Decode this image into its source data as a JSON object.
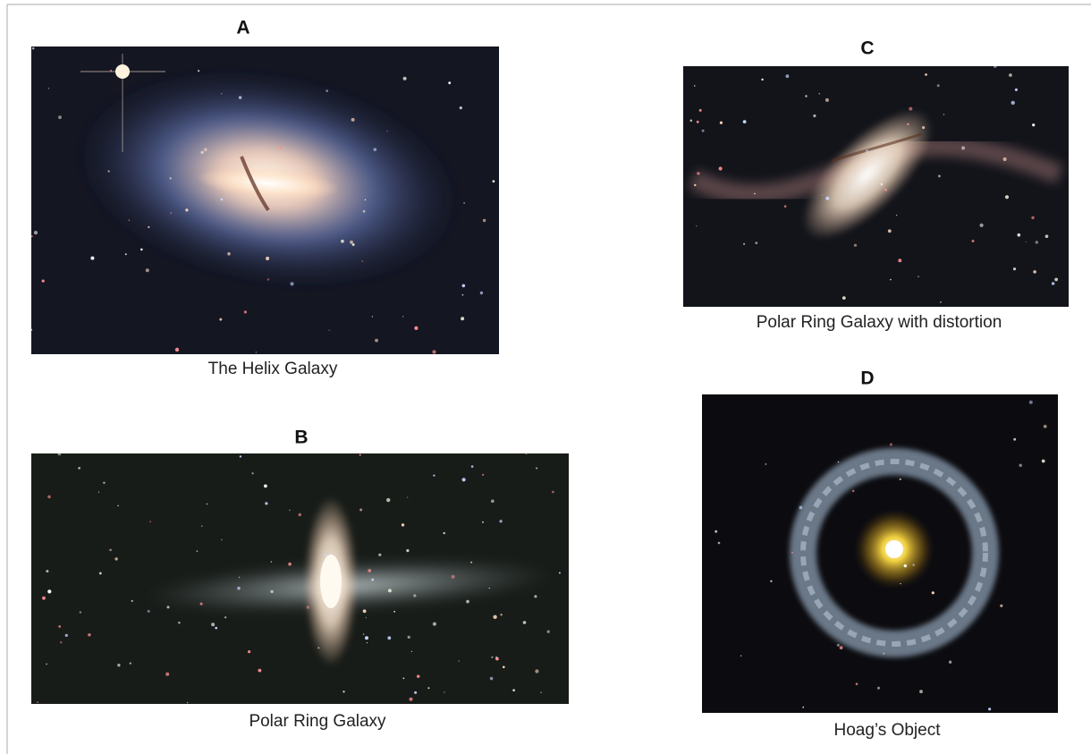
{
  "panels": [
    {
      "label": "A",
      "caption": "The Helix Galaxy"
    },
    {
      "label": "B",
      "caption": "Polar Ring Galaxy"
    },
    {
      "label": "C",
      "caption": "Polar Ring Galaxy with distortion"
    },
    {
      "label": "D",
      "caption": "Hoag’s Object"
    }
  ]
}
